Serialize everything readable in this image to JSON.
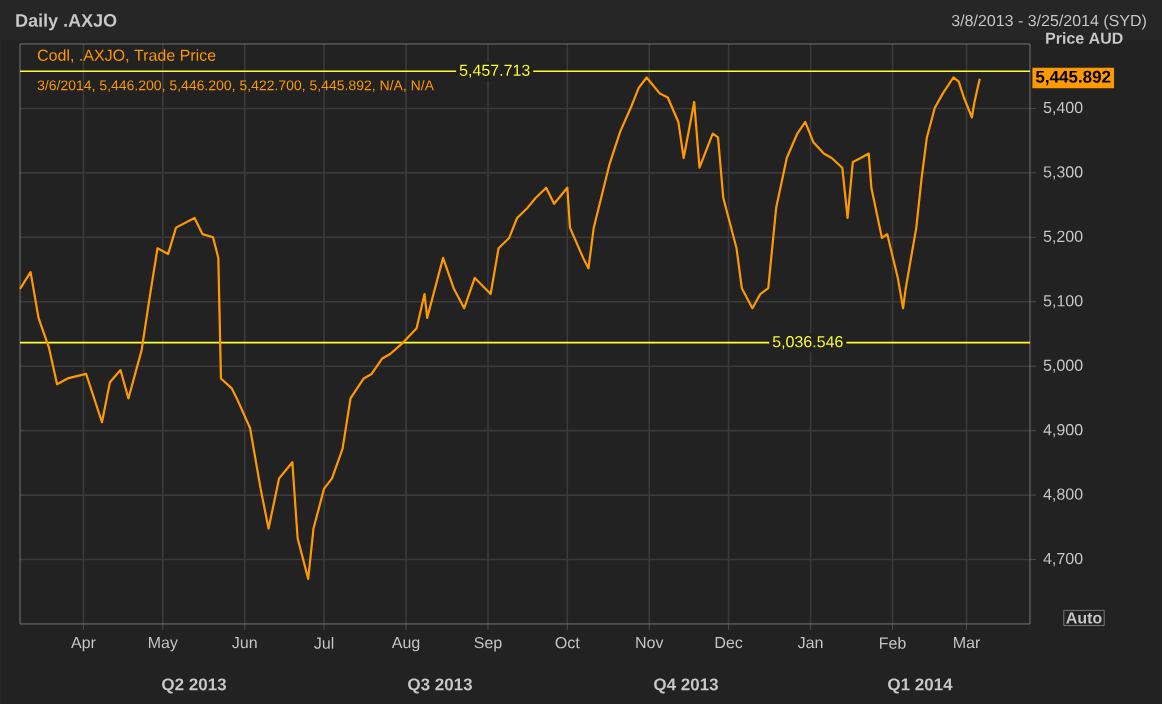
{
  "chart_data": {
    "type": "line",
    "title": "Daily .AXJO",
    "subtitle": "3/8/2013 - 3/25/2014 (SYD)",
    "ylabel": "Price AUD",
    "x": [
      "2013-03-08",
      "2013-03-12",
      "2013-03-15",
      "2013-03-19",
      "2013-03-22",
      "2013-03-26",
      "2013-04-02",
      "2013-04-08",
      "2013-04-11",
      "2013-04-15",
      "2013-04-18",
      "2013-04-23",
      "2013-04-26",
      "2013-04-29",
      "2013-05-03",
      "2013-05-06",
      "2013-05-13",
      "2013-05-16",
      "2013-05-20",
      "2013-05-22",
      "2013-05-23",
      "2013-05-27",
      "2013-05-29",
      "2013-06-03",
      "2013-06-07",
      "2013-06-10",
      "2013-06-14",
      "2013-06-19",
      "2013-06-21",
      "2013-06-25",
      "2013-06-27",
      "2013-07-01",
      "2013-07-04",
      "2013-07-08",
      "2013-07-11",
      "2013-07-16",
      "2013-07-19",
      "2013-07-23",
      "2013-07-26",
      "2013-07-31",
      "2013-08-05",
      "2013-08-08",
      "2013-08-09",
      "2013-08-15",
      "2013-08-19",
      "2013-08-23",
      "2013-08-27",
      "2013-09-02",
      "2013-09-05",
      "2013-09-09",
      "2013-09-12",
      "2013-09-16",
      "2013-09-19",
      "2013-09-23",
      "2013-09-26",
      "2013-10-01",
      "2013-10-02",
      "2013-10-07",
      "2013-10-09",
      "2013-10-11",
      "2013-10-17",
      "2013-10-21",
      "2013-10-25",
      "2013-10-28",
      "2013-10-31",
      "2013-11-05",
      "2013-11-08",
      "2013-11-12",
      "2013-11-14",
      "2013-11-18",
      "2013-11-20",
      "2013-11-25",
      "2013-11-27",
      "2013-11-29",
      "2013-12-04",
      "2013-12-06",
      "2013-12-10",
      "2013-12-13",
      "2013-12-16",
      "2013-12-19",
      "2013-12-23",
      "2013-12-27",
      "2013-12-30",
      "2014-01-02",
      "2014-01-06",
      "2014-01-09",
      "2014-01-13",
      "2014-01-15",
      "2014-01-17",
      "2014-01-20",
      "2014-01-23",
      "2014-01-24",
      "2014-01-28",
      "2014-01-30",
      "2014-02-03",
      "2014-02-05",
      "2014-02-06",
      "2014-02-10",
      "2014-02-12",
      "2014-02-14",
      "2014-02-17",
      "2014-02-20",
      "2014-02-24",
      "2014-02-26",
      "2014-02-28",
      "2014-03-03",
      "2014-03-04",
      "2014-03-06"
    ],
    "series": [
      {
        "name": "Codl, .AXJO, Trade Price",
        "color": "#ff9900",
        "values": [
          5120,
          5146,
          5075,
          5028,
          4972,
          4981,
          4988,
          4913,
          4975,
          4994,
          4950,
          5025,
          5106,
          5183,
          5174,
          5215,
          5230,
          5205,
          5200,
          5168,
          4981,
          4966,
          4950,
          4904,
          4810,
          4748,
          4826,
          4851,
          4733,
          4670,
          4748,
          4810,
          4826,
          4872,
          4950,
          4981,
          4988,
          5012,
          5019,
          5037,
          5059,
          5112,
          5075,
          5168,
          5121,
          5090,
          5137,
          5112,
          5183,
          5199,
          5230,
          5246,
          5261,
          5277,
          5252,
          5277,
          5215,
          5168,
          5152,
          5215,
          5314,
          5364,
          5401,
          5432,
          5448,
          5423,
          5417,
          5379,
          5323,
          5410,
          5308,
          5361,
          5355,
          5261,
          5183,
          5121,
          5090,
          5112,
          5121,
          5246,
          5323,
          5361,
          5379,
          5348,
          5330,
          5323,
          5308,
          5230,
          5317,
          5323,
          5330,
          5277,
          5199,
          5205,
          5137,
          5090,
          5121,
          5215,
          5292,
          5355,
          5401,
          5423,
          5448,
          5442,
          5417,
          5386,
          5410,
          5446
        ]
      }
    ],
    "xlim": [
      "2013-03-08",
      "2014-03-25"
    ],
    "xticks": [
      {
        "value": "2013-04-01",
        "label": "Apr"
      },
      {
        "value": "2013-05-01",
        "label": "May"
      },
      {
        "value": "2013-06-01",
        "label": "Jun"
      },
      {
        "value": "2013-07-01",
        "label": "Jul"
      },
      {
        "value": "2013-08-01",
        "label": "Aug"
      },
      {
        "value": "2013-09-01",
        "label": "Sep"
      },
      {
        "value": "2013-10-01",
        "label": "Oct"
      },
      {
        "value": "2013-11-01",
        "label": "Nov"
      },
      {
        "value": "2013-12-01",
        "label": "Dec"
      },
      {
        "value": "2014-01-01",
        "label": "Jan"
      },
      {
        "value": "2014-02-01",
        "label": "Feb"
      },
      {
        "value": "2014-03-01",
        "label": "Mar"
      }
    ],
    "ylim": [
      4600,
      5500
    ],
    "yticks": [
      {
        "value": 4700,
        "label": "4,700"
      },
      {
        "value": 4800,
        "label": "4,800"
      },
      {
        "value": 4900,
        "label": "4,900"
      },
      {
        "value": 5000,
        "label": "5,000"
      },
      {
        "value": 5100,
        "label": "5,100"
      },
      {
        "value": 5200,
        "label": "5,200"
      },
      {
        "value": 5300,
        "label": "5,300"
      },
      {
        "value": 5400,
        "label": "5,400"
      }
    ],
    "ref_lines": [
      {
        "axis": "y",
        "value": 5457.713,
        "label": "5,457.713",
        "color": "#ffff33"
      },
      {
        "axis": "y",
        "value": 5036.546,
        "label": "5,036.546",
        "color": "#ffff33"
      }
    ],
    "annotations": [
      "3/6/2014, 5,446.200, 5,446.200, 5,422.700, 5,445.892, N/A, N/A",
      "Q2 2013",
      "Q3 2013",
      "Q4 2013",
      "Q1 2014",
      "Auto",
      "5,445.892"
    ],
    "grid": true,
    "marker": "none",
    "line_style": "solid"
  }
}
